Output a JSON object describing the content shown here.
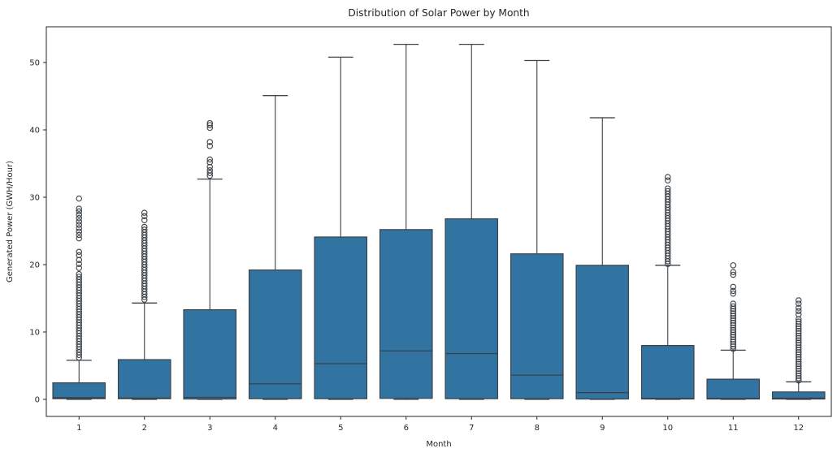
{
  "chart_data": {
    "type": "boxplot",
    "title": "Distribution of Solar Power by Month",
    "xlabel": "Month",
    "ylabel": "Generated Power (GWH/Hour)",
    "categories": [
      "1",
      "2",
      "3",
      "4",
      "5",
      "6",
      "7",
      "8",
      "9",
      "10",
      "11",
      "12"
    ],
    "yticks": [
      0,
      10,
      20,
      30,
      40,
      50
    ],
    "ylim": [
      -2.5,
      55.3
    ],
    "grid": false,
    "legend": "none",
    "box_fill_color": "#3274a1",
    "edge_color": "#3b4248",
    "spine_color": "#262626",
    "boxes": [
      {
        "month": "1",
        "whislo": 0,
        "q1": 0.1,
        "med": 0.25,
        "q3": 2.45,
        "whishi": 5.8,
        "outliers": [
          6.2,
          6.6,
          7.0,
          7.4,
          7.8,
          8.2,
          8.6,
          9.0,
          9.4,
          9.8,
          10.2,
          10.6,
          11.0,
          11.4,
          11.8,
          12.2,
          12.6,
          13.0,
          13.4,
          13.8,
          14.2,
          14.6,
          15.0,
          15.4,
          15.8,
          16.2,
          16.6,
          17.0,
          17.4,
          17.8,
          18.2,
          18.6,
          19.5,
          20.1,
          20.7,
          21.4,
          21.9,
          23.9,
          24.4,
          24.9,
          25.4,
          25.9,
          26.4,
          26.9,
          27.4,
          27.9,
          28.3,
          29.8
        ]
      },
      {
        "month": "2",
        "whislo": 0,
        "q1": 0.1,
        "med": 0.2,
        "q3": 5.9,
        "whishi": 14.3,
        "outliers": [
          14.8,
          15.2,
          15.6,
          16.0,
          16.4,
          16.8,
          17.2,
          17.6,
          18.0,
          18.4,
          18.8,
          19.2,
          19.6,
          20.0,
          20.4,
          20.8,
          21.2,
          21.6,
          22.0,
          22.4,
          22.8,
          23.2,
          23.6,
          24.0,
          24.4,
          24.8,
          25.2,
          25.6,
          26.6,
          27.2,
          27.7
        ]
      },
      {
        "month": "3",
        "whislo": 0,
        "q1": 0.05,
        "med": 0.3,
        "q3": 13.3,
        "whishi": 32.7,
        "outliers": [
          33.2,
          33.6,
          34.0,
          34.5,
          35.2,
          35.6,
          37.6,
          38.2,
          40.3,
          40.7,
          41.0
        ]
      },
      {
        "month": "4",
        "whislo": 0,
        "q1": 0.1,
        "med": 2.3,
        "q3": 19.2,
        "whishi": 45.1,
        "outliers": []
      },
      {
        "month": "5",
        "whislo": 0,
        "q1": 0.1,
        "med": 5.3,
        "q3": 24.1,
        "whishi": 50.8,
        "outliers": []
      },
      {
        "month": "6",
        "whislo": 0,
        "q1": 0.15,
        "med": 7.2,
        "q3": 25.2,
        "whishi": 52.7,
        "outliers": []
      },
      {
        "month": "7",
        "whislo": 0,
        "q1": 0.1,
        "med": 6.8,
        "q3": 26.8,
        "whishi": 52.7,
        "outliers": []
      },
      {
        "month": "8",
        "whislo": 0,
        "q1": 0.1,
        "med": 3.6,
        "q3": 21.6,
        "whishi": 50.3,
        "outliers": []
      },
      {
        "month": "9",
        "whislo": 0,
        "q1": 0.05,
        "med": 1.0,
        "q3": 19.9,
        "whishi": 41.8,
        "outliers": []
      },
      {
        "month": "10",
        "whislo": 0,
        "q1": 0.05,
        "med": 0.15,
        "q3": 8.0,
        "whishi": 19.9,
        "outliers": [
          20.1,
          20.5,
          20.9,
          21.3,
          21.7,
          22.1,
          22.5,
          22.9,
          23.3,
          23.7,
          24.1,
          24.5,
          24.9,
          25.3,
          25.7,
          26.1,
          26.5,
          26.9,
          27.3,
          27.7,
          28.1,
          28.5,
          28.9,
          29.3,
          29.7,
          30.1,
          30.5,
          30.9,
          31.3,
          32.5,
          33.0
        ]
      },
      {
        "month": "11",
        "whislo": 0,
        "q1": 0.05,
        "med": 0.15,
        "q3": 3.0,
        "whishi": 7.3,
        "outliers": [
          7.5,
          7.85,
          8.2,
          8.55,
          8.9,
          9.25,
          9.6,
          9.95,
          10.3,
          10.65,
          11.0,
          11.35,
          11.7,
          12.05,
          12.4,
          12.75,
          13.1,
          13.45,
          13.8,
          14.2,
          15.7,
          16.1,
          16.7,
          18.5,
          18.9,
          19.9
        ]
      },
      {
        "month": "12",
        "whislo": 0,
        "q1": 0.05,
        "med": 0.2,
        "q3": 1.1,
        "whishi": 2.6,
        "outliers": [
          2.8,
          3.15,
          3.5,
          3.85,
          4.2,
          4.55,
          4.9,
          5.25,
          5.6,
          5.95,
          6.3,
          6.65,
          7.0,
          7.35,
          7.7,
          8.05,
          8.4,
          8.75,
          9.1,
          9.45,
          9.8,
          10.15,
          10.5,
          10.85,
          11.2,
          11.55,
          11.9,
          12.6,
          13.1,
          13.6,
          14.2,
          14.7
        ]
      }
    ]
  }
}
